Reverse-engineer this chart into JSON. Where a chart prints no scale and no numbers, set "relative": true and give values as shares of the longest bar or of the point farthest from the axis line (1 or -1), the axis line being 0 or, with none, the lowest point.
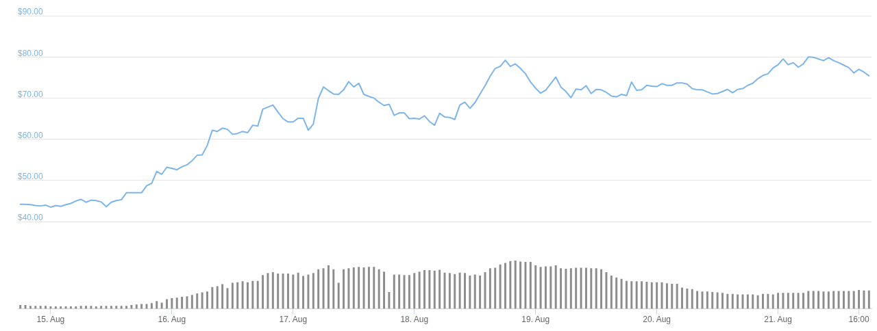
{
  "chart_data": [
    {
      "type": "line",
      "color": "#7cb5ec",
      "marker": "none",
      "grid": "y",
      "tick_labels": "y",
      "xlim": [
        "--08-14T17:30",
        "--08-21T18:30"
      ],
      "ylim": [
        40,
        90
      ],
      "yticks": [
        {
          "value": 40,
          "label": "$40.00"
        },
        {
          "value": 50,
          "label": "$50.00"
        },
        {
          "value": 60,
          "label": "$60.00"
        },
        {
          "value": 70,
          "label": "$70.00"
        },
        {
          "value": 80,
          "label": "$80.00"
        },
        {
          "value": 90,
          "label": "$90.00"
        }
      ],
      "x": [
        "--08-14T18:00",
        "--08-14T19:00",
        "--08-14T20:00",
        "--08-14T21:00",
        "--08-14T22:00",
        "--08-14T23:00",
        "--08-15T00:00",
        "--08-15T01:00",
        "--08-15T02:00",
        "--08-15T03:00",
        "--08-15T04:00",
        "--08-15T05:00",
        "--08-15T06:00",
        "--08-15T07:00",
        "--08-15T08:00",
        "--08-15T09:00",
        "--08-15T10:00",
        "--08-15T11:00",
        "--08-15T12:00",
        "--08-15T13:00",
        "--08-15T14:00",
        "--08-15T15:00",
        "--08-15T16:00",
        "--08-15T17:00",
        "--08-15T18:00",
        "--08-15T19:00",
        "--08-15T20:00",
        "--08-15T21:00",
        "--08-15T22:00",
        "--08-15T23:00",
        "--08-16T00:00",
        "--08-16T01:00",
        "--08-16T02:00",
        "--08-16T03:00",
        "--08-16T04:00",
        "--08-16T05:00",
        "--08-16T06:00",
        "--08-16T07:00",
        "--08-16T08:00",
        "--08-16T09:00",
        "--08-16T10:00",
        "--08-16T11:00",
        "--08-16T12:00",
        "--08-16T13:00",
        "--08-16T14:00",
        "--08-16T15:00",
        "--08-16T16:00",
        "--08-16T17:00",
        "--08-16T18:00",
        "--08-16T19:00",
        "--08-16T20:00",
        "--08-16T21:00",
        "--08-16T22:00",
        "--08-16T23:00",
        "--08-17T00:00",
        "--08-17T01:00",
        "--08-17T02:00",
        "--08-17T03:00",
        "--08-17T04:00",
        "--08-17T05:00",
        "--08-17T06:00",
        "--08-17T07:00",
        "--08-17T08:00",
        "--08-17T09:00",
        "--08-17T10:00",
        "--08-17T11:00",
        "--08-17T12:00",
        "--08-17T13:00",
        "--08-17T14:00",
        "--08-17T15:00",
        "--08-17T16:00",
        "--08-17T17:00",
        "--08-17T18:00",
        "--08-17T19:00",
        "--08-17T20:00",
        "--08-17T21:00",
        "--08-17T22:00",
        "--08-17T23:00",
        "--08-18T00:00",
        "--08-18T01:00",
        "--08-18T02:00",
        "--08-18T03:00",
        "--08-18T04:00",
        "--08-18T05:00",
        "--08-18T06:00",
        "--08-18T07:00",
        "--08-18T08:00",
        "--08-18T09:00",
        "--08-18T10:00",
        "--08-18T11:00",
        "--08-18T12:00",
        "--08-18T13:00",
        "--08-18T14:00",
        "--08-18T15:00",
        "--08-18T16:00",
        "--08-18T17:00",
        "--08-18T18:00",
        "--08-18T19:00",
        "--08-18T20:00",
        "--08-18T21:00",
        "--08-18T22:00",
        "--08-18T23:00",
        "--08-19T00:00",
        "--08-19T01:00",
        "--08-19T02:00",
        "--08-19T03:00",
        "--08-19T04:00",
        "--08-19T05:00",
        "--08-19T06:00",
        "--08-19T07:00",
        "--08-19T08:00",
        "--08-19T09:00",
        "--08-19T10:00",
        "--08-19T11:00",
        "--08-19T12:00",
        "--08-19T13:00",
        "--08-19T14:00",
        "--08-19T15:00",
        "--08-19T16:00",
        "--08-19T17:00",
        "--08-19T18:00",
        "--08-19T19:00",
        "--08-19T20:00",
        "--08-19T21:00",
        "--08-19T22:00",
        "--08-19T23:00",
        "--08-20T00:00",
        "--08-20T01:00",
        "--08-20T02:00",
        "--08-20T03:00",
        "--08-20T04:00",
        "--08-20T05:00",
        "--08-20T06:00",
        "--08-20T07:00",
        "--08-20T08:00",
        "--08-20T09:00",
        "--08-20T10:00",
        "--08-20T11:00",
        "--08-20T12:00",
        "--08-20T13:00",
        "--08-20T14:00",
        "--08-20T15:00",
        "--08-20T16:00",
        "--08-20T17:00",
        "--08-20T18:00",
        "--08-20T19:00",
        "--08-20T20:00",
        "--08-20T21:00",
        "--08-20T22:00",
        "--08-20T23:00",
        "--08-21T00:00",
        "--08-21T01:00",
        "--08-21T02:00",
        "--08-21T03:00",
        "--08-21T04:00",
        "--08-21T05:00",
        "--08-21T06:00",
        "--08-21T07:00",
        "--08-21T08:00",
        "--08-21T09:00",
        "--08-21T10:00",
        "--08-21T11:00",
        "--08-21T12:00",
        "--08-21T13:00",
        "--08-21T14:00",
        "--08-21T15:00",
        "--08-21T16:00",
        "--08-21T17:00",
        "--08-21T18:00"
      ],
      "values": [
        44.2,
        44.2,
        44.1,
        43.9,
        43.8,
        44.0,
        43.5,
        43.9,
        43.7,
        44.1,
        44.4,
        45.0,
        45.4,
        44.7,
        45.2,
        45.1,
        44.8,
        43.6,
        44.7,
        45.1,
        45.3,
        47.0,
        47.0,
        47.0,
        47.0,
        48.7,
        49.3,
        52.2,
        51.5,
        53.2,
        52.9,
        52.6,
        53.3,
        53.8,
        54.8,
        56.1,
        56.2,
        58.5,
        62.2,
        61.9,
        62.7,
        62.4,
        61.2,
        61.4,
        61.9,
        61.6,
        63.4,
        63.2,
        67.3,
        67.8,
        68.3,
        66.6,
        65.0,
        64.2,
        64.2,
        65.1,
        65.1,
        62.2,
        63.7,
        69.9,
        72.7,
        71.8,
        71.0,
        70.9,
        72.0,
        74.0,
        72.7,
        73.6,
        70.9,
        70.4,
        70.0,
        69.0,
        68.2,
        68.5,
        65.8,
        66.4,
        66.4,
        65.0,
        65.1,
        64.9,
        65.7,
        64.3,
        63.4,
        66.3,
        65.4,
        65.3,
        64.8,
        68.3,
        69.0,
        67.5,
        68.9,
        71.0,
        73.0,
        75.3,
        77.2,
        77.7,
        79.2,
        77.7,
        78.3,
        77.2,
        75.9,
        73.9,
        72.4,
        71.2,
        71.9,
        73.5,
        75.1,
        72.7,
        71.6,
        70.1,
        72.2,
        72.0,
        73.0,
        71.1,
        72.1,
        72.0,
        71.4,
        70.5,
        70.3,
        70.9,
        70.6,
        73.9,
        71.9,
        72.0,
        73.1,
        72.9,
        72.8,
        73.5,
        73.1,
        73.1,
        73.7,
        73.7,
        73.4,
        72.3,
        72.0,
        72.0,
        71.5,
        71.0,
        71.1,
        71.6,
        72.1,
        71.3,
        72.1,
        72.3,
        73.1,
        73.6,
        74.7,
        75.5,
        75.9,
        77.3,
        78.1,
        79.5,
        78.1,
        78.6,
        77.5,
        78.3,
        80.0,
        79.9,
        79.5,
        79.1,
        79.8,
        79.1,
        78.6,
        78.0,
        77.4,
        76.1,
        77.0,
        76.3,
        75.4
      ]
    },
    {
      "type": "bar",
      "color": "#8c8c8c",
      "relative": true,
      "xlim": [
        "--08-14T17:30",
        "--08-21T18:30"
      ],
      "xticks": [
        {
          "value": "--08-15",
          "label": "15. Aug"
        },
        {
          "value": "--08-16",
          "label": "16. Aug"
        },
        {
          "value": "--08-17",
          "label": "17. Aug"
        },
        {
          "value": "--08-18",
          "label": "18. Aug"
        },
        {
          "value": "--08-19",
          "label": "19. Aug"
        },
        {
          "value": "--08-20",
          "label": "20. Aug"
        },
        {
          "value": "--08-21",
          "label": "21. Aug"
        },
        {
          "value": "--08-21T16:00",
          "label": "16:00"
        }
      ],
      "x": [
        "--08-14T18:00",
        "--08-14T19:00",
        "--08-14T20:00",
        "--08-14T21:00",
        "--08-14T22:00",
        "--08-14T23:00",
        "--08-15T00:00",
        "--08-15T01:00",
        "--08-15T02:00",
        "--08-15T03:00",
        "--08-15T04:00",
        "--08-15T05:00",
        "--08-15T06:00",
        "--08-15T07:00",
        "--08-15T08:00",
        "--08-15T09:00",
        "--08-15T10:00",
        "--08-15T11:00",
        "--08-15T12:00",
        "--08-15T13:00",
        "--08-15T14:00",
        "--08-15T15:00",
        "--08-15T16:00",
        "--08-15T17:00",
        "--08-15T18:00",
        "--08-15T19:00",
        "--08-15T20:00",
        "--08-15T21:00",
        "--08-15T22:00",
        "--08-15T23:00",
        "--08-16T00:00",
        "--08-16T01:00",
        "--08-16T02:00",
        "--08-16T03:00",
        "--08-16T04:00",
        "--08-16T05:00",
        "--08-16T06:00",
        "--08-16T07:00",
        "--08-16T08:00",
        "--08-16T09:00",
        "--08-16T10:00",
        "--08-16T11:00",
        "--08-16T12:00",
        "--08-16T13:00",
        "--08-16T14:00",
        "--08-16T15:00",
        "--08-16T16:00",
        "--08-16T17:00",
        "--08-16T18:00",
        "--08-16T19:00",
        "--08-16T20:00",
        "--08-16T21:00",
        "--08-16T22:00",
        "--08-16T23:00",
        "--08-17T00:00",
        "--08-17T01:00",
        "--08-17T02:00",
        "--08-17T03:00",
        "--08-17T04:00",
        "--08-17T05:00",
        "--08-17T06:00",
        "--08-17T07:00",
        "--08-17T08:00",
        "--08-17T09:00",
        "--08-17T10:00",
        "--08-17T11:00",
        "--08-17T12:00",
        "--08-17T13:00",
        "--08-17T14:00",
        "--08-17T15:00",
        "--08-17T16:00",
        "--08-17T17:00",
        "--08-17T18:00",
        "--08-17T19:00",
        "--08-17T20:00",
        "--08-17T21:00",
        "--08-17T22:00",
        "--08-17T23:00",
        "--08-18T00:00",
        "--08-18T01:00",
        "--08-18T02:00",
        "--08-18T03:00",
        "--08-18T04:00",
        "--08-18T05:00",
        "--08-18T06:00",
        "--08-18T07:00",
        "--08-18T08:00",
        "--08-18T09:00",
        "--08-18T10:00",
        "--08-18T11:00",
        "--08-18T12:00",
        "--08-18T13:00",
        "--08-18T14:00",
        "--08-18T15:00",
        "--08-18T16:00",
        "--08-18T17:00",
        "--08-18T18:00",
        "--08-18T19:00",
        "--08-18T20:00",
        "--08-18T21:00",
        "--08-18T22:00",
        "--08-18T23:00",
        "--08-19T00:00",
        "--08-19T01:00",
        "--08-19T02:00",
        "--08-19T03:00",
        "--08-19T04:00",
        "--08-19T05:00",
        "--08-19T06:00",
        "--08-19T07:00",
        "--08-19T08:00",
        "--08-19T09:00",
        "--08-19T10:00",
        "--08-19T11:00",
        "--08-19T12:00",
        "--08-19T13:00",
        "--08-19T14:00",
        "--08-19T15:00",
        "--08-19T16:00",
        "--08-19T17:00",
        "--08-19T18:00",
        "--08-19T19:00",
        "--08-19T20:00",
        "--08-19T21:00",
        "--08-19T22:00",
        "--08-19T23:00",
        "--08-20T00:00",
        "--08-20T01:00",
        "--08-20T02:00",
        "--08-20T03:00",
        "--08-20T04:00",
        "--08-20T05:00",
        "--08-20T06:00",
        "--08-20T07:00",
        "--08-20T08:00",
        "--08-20T09:00",
        "--08-20T10:00",
        "--08-20T11:00",
        "--08-20T12:00",
        "--08-20T13:00",
        "--08-20T14:00",
        "--08-20T15:00",
        "--08-20T16:00",
        "--08-20T17:00",
        "--08-20T18:00",
        "--08-20T19:00",
        "--08-20T20:00",
        "--08-20T21:00",
        "--08-20T22:00",
        "--08-20T23:00",
        "--08-21T00:00",
        "--08-21T01:00",
        "--08-21T02:00",
        "--08-21T03:00",
        "--08-21T04:00",
        "--08-21T05:00",
        "--08-21T06:00",
        "--08-21T07:00",
        "--08-21T08:00",
        "--08-21T09:00",
        "--08-21T10:00",
        "--08-21T11:00",
        "--08-21T12:00",
        "--08-21T13:00",
        "--08-21T14:00",
        "--08-21T15:00",
        "--08-21T16:00",
        "--08-21T17:00",
        "--08-21T18:00"
      ],
      "values": [
        0.08,
        0.08,
        0.06,
        0.06,
        0.06,
        0.06,
        0.05,
        0.05,
        0.05,
        0.05,
        0.05,
        0.05,
        0.06,
        0.06,
        0.06,
        0.05,
        0.06,
        0.06,
        0.06,
        0.06,
        0.06,
        0.06,
        0.08,
        0.09,
        0.1,
        0.1,
        0.12,
        0.16,
        0.13,
        0.2,
        0.22,
        0.23,
        0.25,
        0.26,
        0.29,
        0.32,
        0.34,
        0.36,
        0.45,
        0.47,
        0.51,
        0.43,
        0.54,
        0.55,
        0.57,
        0.55,
        0.58,
        0.58,
        0.7,
        0.74,
        0.76,
        0.73,
        0.73,
        0.73,
        0.71,
        0.75,
        0.68,
        0.71,
        0.74,
        0.82,
        0.84,
        0.9,
        0.82,
        0.54,
        0.82,
        0.84,
        0.86,
        0.87,
        0.86,
        0.87,
        0.87,
        0.82,
        0.77,
        0.35,
        0.71,
        0.71,
        0.7,
        0.7,
        0.74,
        0.77,
        0.8,
        0.8,
        0.79,
        0.81,
        0.75,
        0.74,
        0.72,
        0.75,
        0.74,
        0.69,
        0.71,
        0.69,
        0.76,
        0.84,
        0.85,
        0.92,
        0.95,
        0.99,
        1.0,
        0.98,
        0.97,
        0.97,
        0.9,
        0.87,
        0.88,
        0.88,
        0.9,
        0.84,
        0.83,
        0.84,
        0.85,
        0.85,
        0.85,
        0.84,
        0.84,
        0.82,
        0.76,
        0.69,
        0.65,
        0.62,
        0.58,
        0.57,
        0.57,
        0.57,
        0.56,
        0.55,
        0.55,
        0.55,
        0.53,
        0.52,
        0.52,
        0.44,
        0.42,
        0.41,
        0.37,
        0.36,
        0.36,
        0.35,
        0.34,
        0.33,
        0.31,
        0.31,
        0.3,
        0.3,
        0.3,
        0.3,
        0.28,
        0.31,
        0.31,
        0.3,
        0.33,
        0.33,
        0.33,
        0.33,
        0.33,
        0.33,
        0.37,
        0.37,
        0.37,
        0.36,
        0.36,
        0.37,
        0.37,
        0.37,
        0.37,
        0.37,
        0.39,
        0.38,
        0.38
      ]
    }
  ]
}
